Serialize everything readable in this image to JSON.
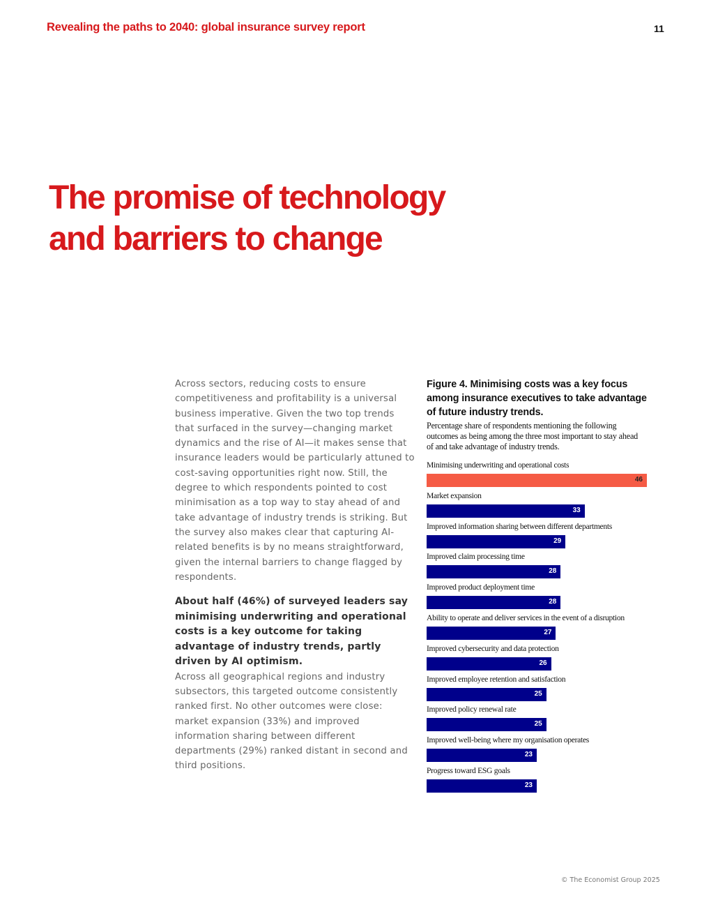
{
  "header": {
    "title": "Revealing the paths to 2040: global insurance survey report",
    "page_number": "11"
  },
  "section": {
    "title_line1": "The promise of technology",
    "title_line2": "and barriers to change"
  },
  "body": {
    "paragraph1": "Across sectors, reducing costs to ensure competitiveness and profitability is a universal business imperative. Given the two top trends that surfaced in the survey—changing market dynamics and the rise of AI—it makes sense that insurance leaders would be particularly attuned to cost-saving opportunities right now. Still, the degree to which respondents pointed to cost minimisation as a top way to stay ahead of and take advantage of industry trends is striking. But the survey also makes clear that capturing AI-related benefits is by no means straightforward, given the internal barriers to change flagged by respondents.",
    "lead": "About half (46%) of surveyed leaders say minimising underwriting and operational costs is a key outcome for taking advantage of industry trends, partly driven by AI optimism.",
    "paragraph2": "Across all geographical regions and industry subsectors, this targeted outcome consistently ranked first. No other outcomes were close: market expansion (33%) and improved information sharing between different departments (29%) ranked distant in second and third positions."
  },
  "figure": {
    "title": "Figure 4. Minimising costs was a key focus among insurance executives to take advantage of future industry trends.",
    "subtitle": "Percentage share of respondents mentioning the following outcomes as being among the three most important to stay ahead of and take advantage of industry trends."
  },
  "chart_data": {
    "type": "bar",
    "orientation": "horizontal",
    "title": "Figure 4. Minimising costs was a key focus among insurance executives to take advantage of future industry trends.",
    "xlim": [
      0,
      46
    ],
    "highlight_color": "#f55b45",
    "bar_color": "#00008b",
    "categories": [
      "Minimising underwriting and operational costs",
      "Market expansion",
      "Improved information sharing between different departments",
      "Improved claim processing time",
      "Improved product deployment time",
      "Ability to operate and deliver services in the event of a disruption",
      "Improved cybersecurity and data protection",
      "Improved employee retention and satisfaction",
      "Improved policy renewal rate",
      "Improved well-being where my organisation operates",
      "Progress toward ESG goals"
    ],
    "values": [
      46,
      33,
      29,
      28,
      28,
      27,
      26,
      25,
      25,
      23,
      23
    ]
  },
  "footer": {
    "copyright": "© The Economist Group 2025"
  }
}
